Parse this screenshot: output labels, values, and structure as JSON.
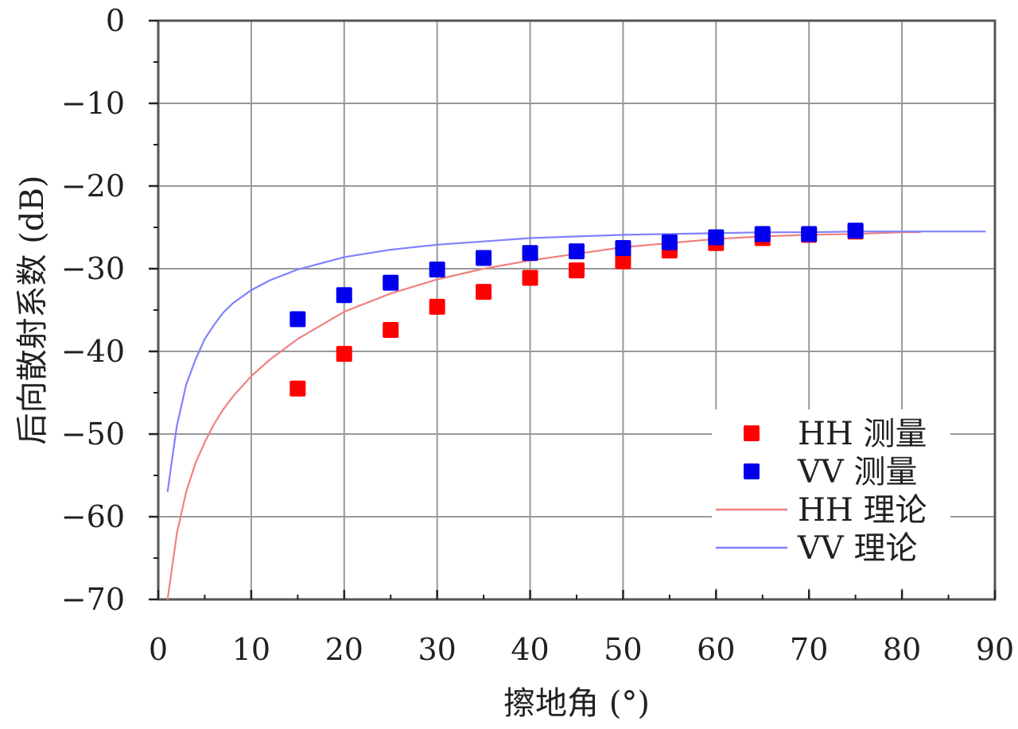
{
  "chart_data": {
    "type": "scatter",
    "xlabel": "擦地角 (°)",
    "ylabel": "后向散射系数 (dB)",
    "xlim": [
      0,
      90
    ],
    "ylim": [
      -70,
      0
    ],
    "x_ticks": [
      "0",
      "10",
      "20",
      "30",
      "40",
      "50",
      "60",
      "70",
      "80",
      "90"
    ],
    "y_ticks": [
      "0",
      "−10",
      "−20",
      "−30",
      "−40",
      "−50",
      "−60",
      "−70"
    ],
    "grid": true,
    "legend_position": "bottom-right",
    "colors": {
      "hh": "#ff0000",
      "vv": "#0000ee",
      "hh_line": "#f08080",
      "vv_line": "#8080ff",
      "grid": "#999999"
    },
    "series": [
      {
        "name": "HH 测量",
        "kind": "scatter",
        "x": [
          15,
          20,
          25,
          30,
          35,
          40,
          45,
          50,
          55,
          60,
          65,
          70,
          75
        ],
        "y": [
          -44.5,
          -40.3,
          -37.4,
          -34.6,
          -32.8,
          -31.1,
          -30.2,
          -29.1,
          -27.8,
          -26.9,
          -26.3,
          -25.9,
          -25.5
        ]
      },
      {
        "name": "VV 测量",
        "kind": "scatter",
        "x": [
          15,
          20,
          25,
          30,
          35,
          40,
          45,
          50,
          55,
          60,
          65,
          70,
          75
        ],
        "y": [
          -36.1,
          -33.2,
          -31.7,
          -30.1,
          -28.7,
          -28.1,
          -27.9,
          -27.5,
          -26.8,
          -26.2,
          -25.8,
          -25.8,
          -25.4
        ]
      },
      {
        "name": "HH 理论",
        "kind": "line",
        "x": [
          1,
          2,
          3,
          4,
          5,
          6,
          7,
          8,
          10,
          12,
          15,
          20,
          25,
          30,
          35,
          40,
          45,
          50,
          55,
          60,
          65,
          70,
          75,
          80,
          82
        ],
        "y": [
          -70,
          -62,
          -57,
          -53.5,
          -51,
          -48.8,
          -47,
          -45.5,
          -43,
          -41,
          -38.5,
          -35.2,
          -33,
          -31.3,
          -30,
          -29,
          -28.2,
          -27.4,
          -26.9,
          -26.4,
          -26.1,
          -25.9,
          -25.8,
          -25.6,
          -25.6
        ]
      },
      {
        "name": "VV 理论",
        "kind": "line",
        "x": [
          1,
          1.5,
          2,
          3,
          4,
          5,
          6,
          7,
          8,
          10,
          12,
          15,
          20,
          25,
          30,
          35,
          40,
          45,
          50,
          55,
          60,
          65,
          70,
          75,
          80,
          85,
          89
        ],
        "y": [
          -57,
          -53,
          -49,
          -44,
          -41,
          -38.5,
          -36.8,
          -35.3,
          -34.2,
          -32.6,
          -31.4,
          -30.1,
          -28.6,
          -27.7,
          -27.1,
          -26.7,
          -26.3,
          -26.1,
          -25.9,
          -25.8,
          -25.7,
          -25.6,
          -25.6,
          -25.5,
          -25.5,
          -25.5,
          -25.5
        ]
      }
    ]
  }
}
